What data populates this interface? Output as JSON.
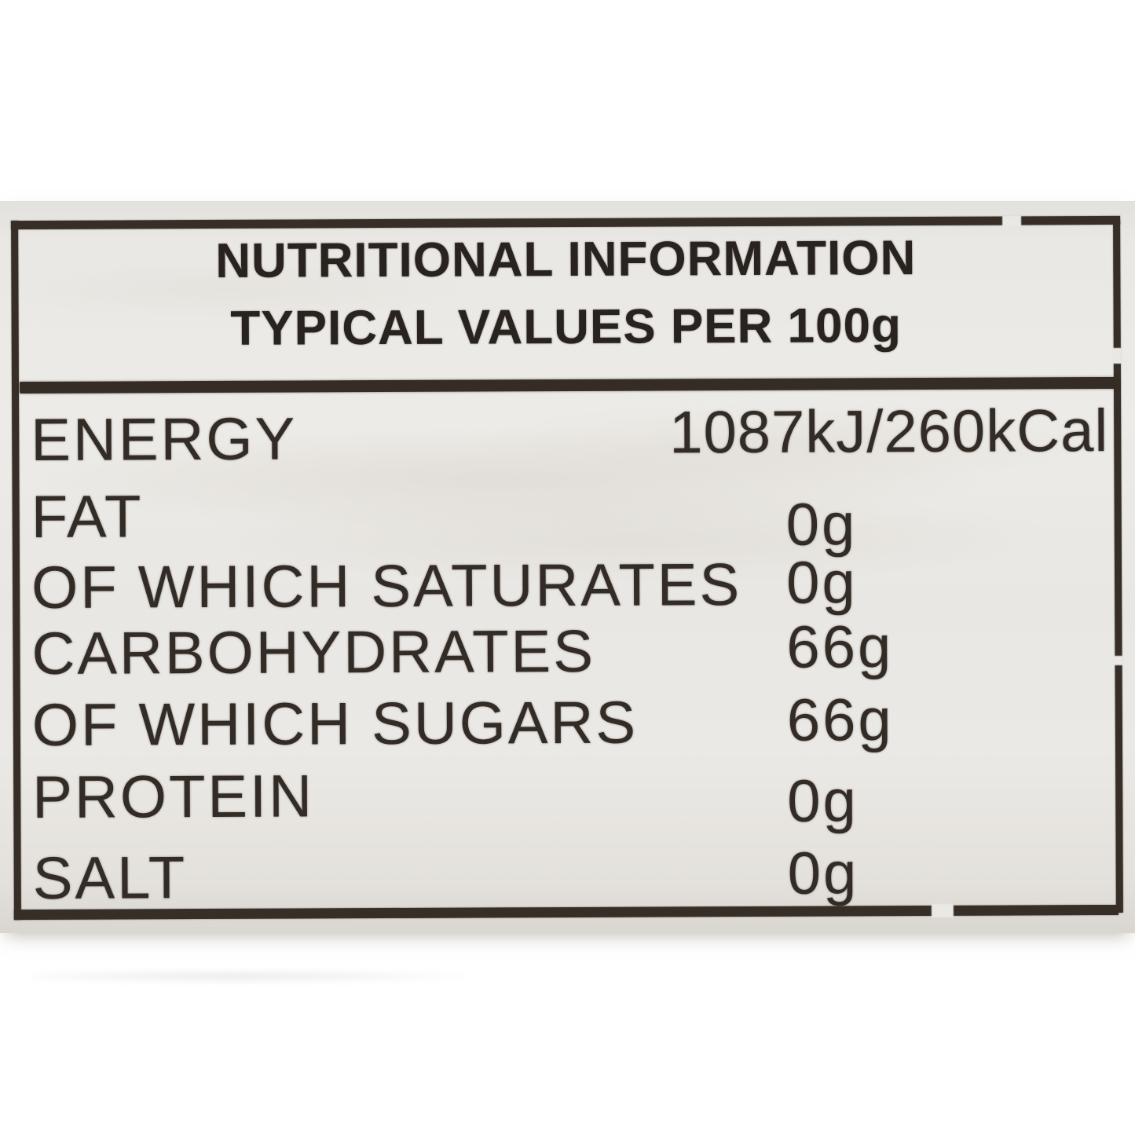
{
  "label": {
    "header": {
      "line1": "NUTRITIONAL INFORMATION",
      "line2": "TYPICAL VALUES PER 100g"
    },
    "rows": [
      {
        "name": "ENERGY",
        "value": "1087kJ/260kCal"
      },
      {
        "name": "FAT",
        "value": "0g"
      },
      {
        "name": "OF WHICH SATURATES",
        "value": "0g"
      },
      {
        "name": "CARBOHYDRATES",
        "value": "66g"
      },
      {
        "name": "OF WHICH SUGARS",
        "value": "66g"
      },
      {
        "name": "PROTEIN",
        "value": "0g"
      },
      {
        "name": "SALT",
        "value": "0g"
      }
    ],
    "colors": {
      "paper": "#eae8e4",
      "ink": "#322b26",
      "border": "#362e27",
      "background": "#ffffff"
    }
  }
}
